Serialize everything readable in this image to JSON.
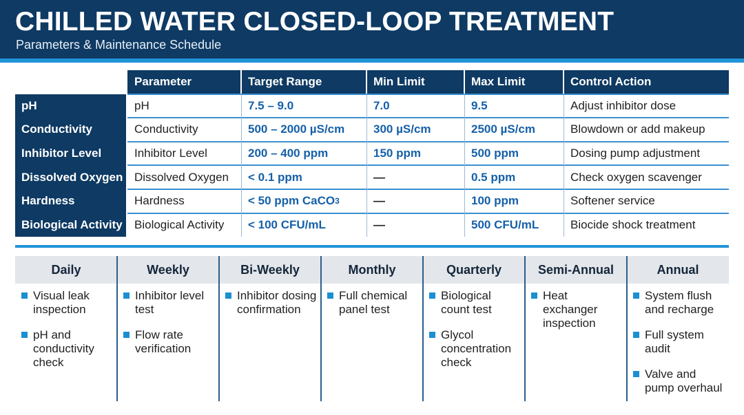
{
  "header": {
    "title": "CHILLED WATER CLOSED-LOOP TREATMENT",
    "subtitle": "Parameters & Maintenance Schedule"
  },
  "table": {
    "columns": [
      "Parameter",
      "Target Range",
      "Min Limit",
      "Max Limit",
      "Control Action"
    ],
    "rows": [
      {
        "label": "pH",
        "parameter": "pH",
        "target": "7.5 – 9.0",
        "min": "7.0",
        "max": "9.5",
        "action": "Adjust inhibitor dose"
      },
      {
        "label": "Conductivity",
        "parameter": "Conductivity",
        "target": "500 – 2000 µS/cm",
        "min": "300 µS/cm",
        "max": "2500 µS/cm",
        "action": "Blowdown or add makeup"
      },
      {
        "label": "Inhibitor Level",
        "parameter": "Inhibitor Level",
        "target": "200 – 400 ppm",
        "min": "150 ppm",
        "max": "500 ppm",
        "action": "Dosing pump adjustment"
      },
      {
        "label": "Dissolved Oxygen",
        "parameter": "Dissolved Oxygen",
        "target": "< 0.1 ppm",
        "min": "—",
        "max": "0.5 ppm",
        "action": "Check oxygen scavenger"
      },
      {
        "label": "Hardness",
        "parameter": "Hardness",
        "target": "< 50 ppm CaCO",
        "target_sub": "3",
        "min": "—",
        "max": "100 ppm",
        "action": "Softener service"
      },
      {
        "label": "Biological Activity",
        "parameter": "Biological Activity",
        "target": "< 100 CFU/mL",
        "min": "—",
        "max": "500 CFU/mL",
        "action": "Biocide shock treatment"
      }
    ]
  },
  "schedule": [
    {
      "title": "Daily",
      "items": [
        "Visual leak inspection",
        "pH and conductivity check"
      ]
    },
    {
      "title": "Weekly",
      "items": [
        "Inhibitor level test",
        "Flow rate verification"
      ]
    },
    {
      "title": "Bi-Weekly",
      "items": [
        "Inhibitor dosing confirmation"
      ]
    },
    {
      "title": "Monthly",
      "items": [
        "Full chemical panel test"
      ]
    },
    {
      "title": "Quarterly",
      "items": [
        "Biological count test",
        "Glycol concentration check"
      ]
    },
    {
      "title": "Semi-Annual",
      "items": [
        "Heat exchanger inspection"
      ]
    },
    {
      "title": "Annual",
      "items": [
        "System flush and recharge",
        "Full system audit",
        "Valve and pump overhaul"
      ]
    }
  ],
  "colors": {
    "navy": "#0e3a63",
    "accent": "#2294d8",
    "value_text": "#1560a8"
  }
}
